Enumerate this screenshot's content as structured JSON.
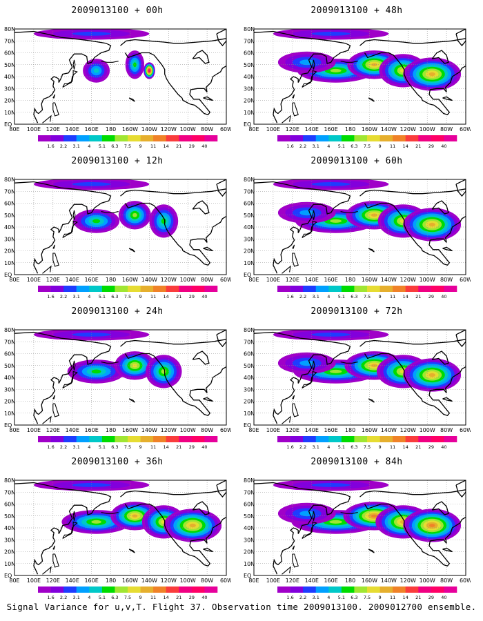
{
  "footer": "Signal Variance for u,v,T. Flight 37. Observation time 2009013100. 2009012700 ensemble.",
  "lat_labels": [
    "80N",
    "70N",
    "60N",
    "50N",
    "40N",
    "30N",
    "20N",
    "10N",
    "EQ"
  ],
  "lon_labels": [
    "80E",
    "100E",
    "120E",
    "140E",
    "160E",
    "180",
    "160W",
    "140W",
    "120W",
    "100W",
    "80W",
    "60W"
  ],
  "colorbar": {
    "labels": [
      "1.6",
      "2.2",
      "3.1",
      "4",
      "5.1",
      "6.3",
      "7.5",
      "9",
      "11",
      "14",
      "21",
      "29",
      "40"
    ],
    "colors": [
      "#a000c8",
      "#8200dc",
      "#1e3cff",
      "#00a0ff",
      "#00c8c8",
      "#00dc00",
      "#a0e632",
      "#e6dc32",
      "#e6af2d",
      "#f08228",
      "#fa3c3c",
      "#f00082",
      "#ff0066",
      "#e6009b"
    ]
  },
  "panels": [
    {
      "title": "2009013100 + 00h",
      "spread": 0.35
    },
    {
      "title": "2009013100 + 48h",
      "spread": 1.0
    },
    {
      "title": "2009013100 + 12h",
      "spread": 0.6
    },
    {
      "title": "2009013100 + 60h",
      "spread": 1.05
    },
    {
      "title": "2009013100 + 24h",
      "spread": 0.75
    },
    {
      "title": "2009013100 + 72h",
      "spread": 1.1
    },
    {
      "title": "2009013100 + 36h",
      "spread": 0.9
    },
    {
      "title": "2009013100 + 84h",
      "spread": 1.15
    }
  ]
}
